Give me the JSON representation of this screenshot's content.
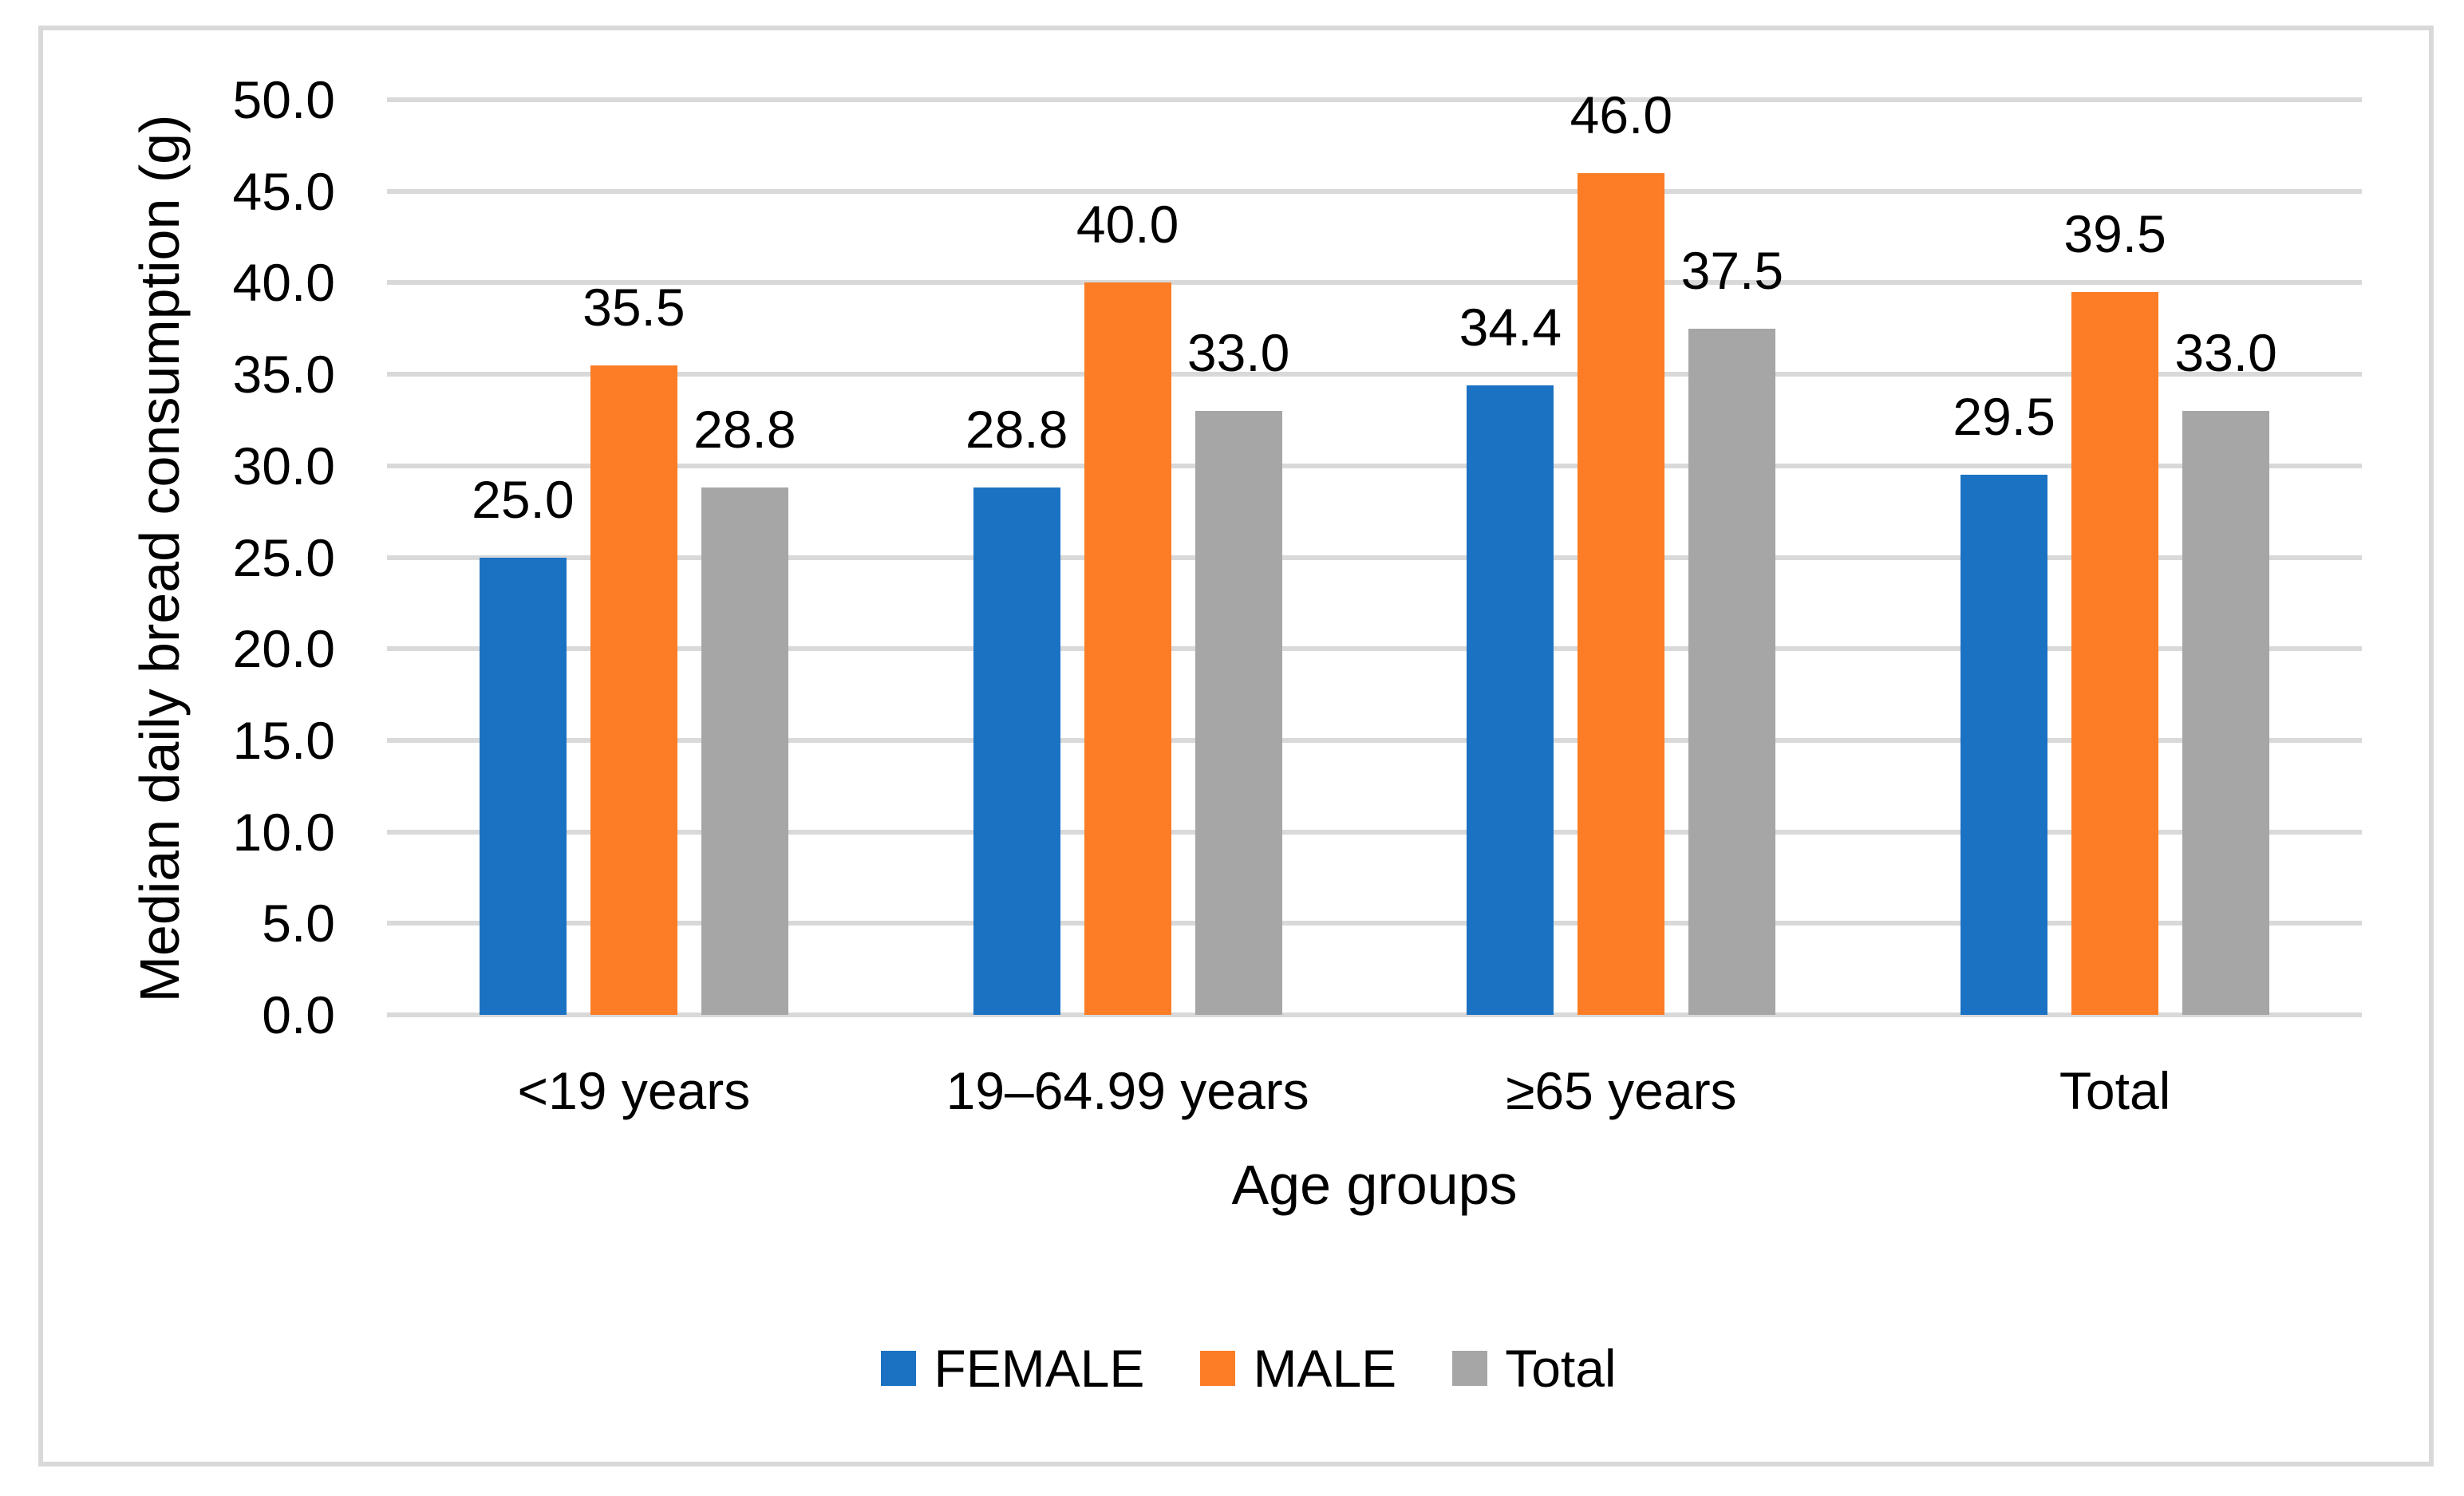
{
  "figure": {
    "background": "#FFFFFF",
    "border_color": "#D9D9D9"
  },
  "chart_data": {
    "type": "bar",
    "title": "",
    "xlabel": "Age groups",
    "ylabel": "Median daily bread consumption (g)",
    "ylim": [
      0,
      50
    ],
    "ytick_step": 5,
    "ytick_decimals": 1,
    "label_decimals": 1,
    "grid": true,
    "grid_color": "#D9D9D9",
    "text_color": "#000000",
    "legend_position": "bottom",
    "categories": [
      "<19 years",
      "19–64.99 years",
      "≥65 years",
      "Total"
    ],
    "series": [
      {
        "name": "FEMALE",
        "color": "#1B72C2",
        "values": [
          25.0,
          28.8,
          34.4,
          29.5
        ]
      },
      {
        "name": "MALE",
        "color": "#FC7D26",
        "values": [
          35.5,
          40.0,
          46.0,
          39.5
        ]
      },
      {
        "name": "Total",
        "color": "#A6A6A6",
        "values": [
          28.8,
          33.0,
          37.5,
          33.0
        ]
      }
    ],
    "data_labels": true
  }
}
